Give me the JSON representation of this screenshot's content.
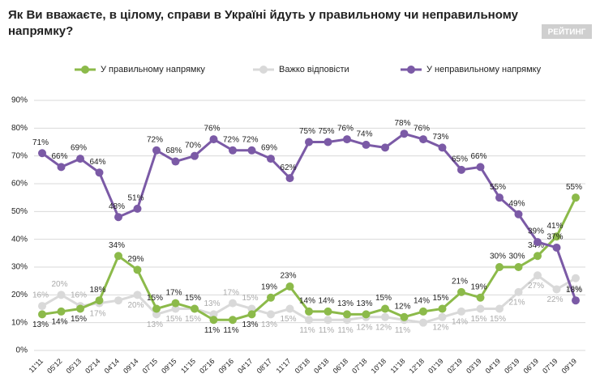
{
  "chart_data": {
    "type": "line",
    "title": "Як Ви вважаєте, в цілому, справи в Україні йдуть у правильному чи неправильному напрямку?",
    "logo": "РЕЙТИНГ",
    "categories": [
      "11'11",
      "05'12",
      "05'13",
      "02'14",
      "04'14",
      "09'14",
      "07'15",
      "09'15",
      "11'15",
      "02'16",
      "09'16",
      "04'17",
      "08'17",
      "11'17",
      "03'18",
      "04'18",
      "06'18",
      "07'18",
      "10'18",
      "11'18",
      "12'18",
      "01'19",
      "02'19",
      "03'19",
      "04'19",
      "05'19",
      "06'19",
      "07'19",
      "09'19"
    ],
    "series": [
      {
        "name": "У правильному напрямку",
        "color": "#8cba4a",
        "values": [
          13,
          14,
          15,
          18,
          34,
          29,
          15,
          17,
          15,
          11,
          11,
          13,
          19,
          23,
          14,
          14,
          13,
          13,
          15,
          12,
          14,
          15,
          21,
          19,
          30,
          30,
          34,
          41,
          55
        ],
        "value_labels": [
          "13%",
          "14%",
          "15%",
          "18%",
          "34%",
          "29%",
          "15%",
          "17%",
          "15%",
          "11%",
          "11%",
          "13%",
          "19%",
          "23%",
          "14%",
          "14%",
          "13%",
          "13%",
          "15%",
          "12%",
          "14%",
          "15%",
          "21%",
          "19%",
          "30%",
          "30%",
          "34%",
          "41%",
          "55%"
        ]
      },
      {
        "name": "Важко відповісти",
        "color": "#d9d9d9",
        "values": [
          16,
          20,
          16,
          17,
          18,
          20,
          13,
          15,
          15,
          13,
          17,
          15,
          13,
          15,
          11,
          11,
          11,
          12,
          12,
          11,
          10,
          12,
          14,
          15,
          15,
          21,
          27,
          22,
          26
        ],
        "value_labels": [
          "16%",
          "20%",
          "16%",
          "17%",
          null,
          "20%",
          "13%",
          "15%",
          "15%",
          "13%",
          "17%",
          "15%",
          "13%",
          "15%",
          "11%",
          "11%",
          "11%",
          "12%",
          "12%",
          "11%",
          null,
          "12%",
          "14%",
          "15%",
          "15%",
          "21%",
          "27%",
          "22%",
          "26%"
        ]
      },
      {
        "name": "У неправильному напрямку",
        "color": "#7b5aa6",
        "values": [
          71,
          66,
          69,
          64,
          48,
          51,
          72,
          68,
          70,
          76,
          72,
          72,
          69,
          62,
          75,
          75,
          76,
          74,
          73,
          78,
          76,
          73,
          65,
          66,
          55,
          49,
          39,
          37,
          18
        ],
        "value_labels": [
          "71%",
          "66%",
          "69%",
          "64%",
          "48%",
          "51%",
          "72%",
          "68%",
          "70%",
          "76%",
          "72%",
          "72%",
          "69%",
          "62%",
          "75%",
          "75%",
          "76%",
          "74%",
          null,
          "78%",
          "76%",
          "73%",
          "65%",
          "66%",
          "55%",
          "49%",
          "39%",
          "37%",
          "18%"
        ]
      }
    ],
    "ylim": [
      0,
      90
    ],
    "yticks": [
      {
        "value": 0,
        "label": "0%"
      },
      {
        "value": 10,
        "label": "10%"
      },
      {
        "value": 20,
        "label": "20%"
      },
      {
        "value": 30,
        "label": "30%"
      },
      {
        "value": 40,
        "label": "40%"
      },
      {
        "value": 50,
        "label": "50%"
      },
      {
        "value": 60,
        "label": "60%"
      },
      {
        "value": 70,
        "label": "70%"
      },
      {
        "value": 80,
        "label": "80%"
      },
      {
        "value": 90,
        "label": "90%"
      }
    ],
    "grid": true,
    "legend": "top"
  }
}
